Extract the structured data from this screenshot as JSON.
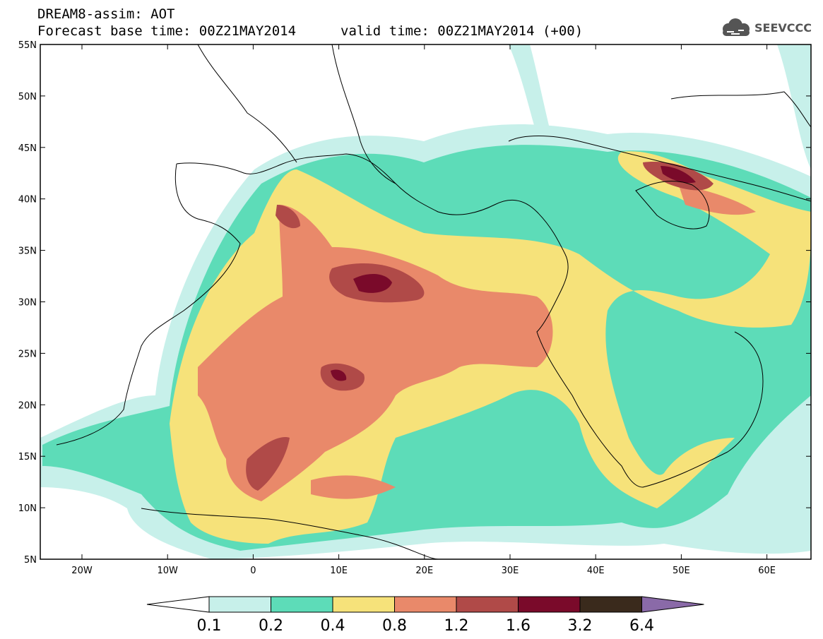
{
  "header": {
    "line1": "DREAM8-assim: AOT",
    "line2": "Forecast base time: 00Z21MAY2014",
    "line3": "valid time: 00Z21MAY2014 (+00)",
    "logo_text": "SEEVCCC"
  },
  "axes": {
    "lat_labels": [
      "55N",
      "50N",
      "45N",
      "40N",
      "35N",
      "30N",
      "25N",
      "20N",
      "15N",
      "10N",
      "5N"
    ],
    "lon_labels": [
      "20W",
      "10W",
      "0",
      "10E",
      "20E",
      "30E",
      "40E",
      "50E",
      "60E"
    ]
  },
  "colorbar": {
    "labels": [
      "0.1",
      "0.2",
      "0.4",
      "0.8",
      "1.2",
      "1.6",
      "3.2",
      "6.4"
    ],
    "colors": [
      "#ffffff",
      "#c7f0ea",
      "#5ddcb8",
      "#f6e27a",
      "#e9896a",
      "#b04a48",
      "#7a0a2a",
      "#3a2a1c",
      "#8a6aa8"
    ]
  }
}
